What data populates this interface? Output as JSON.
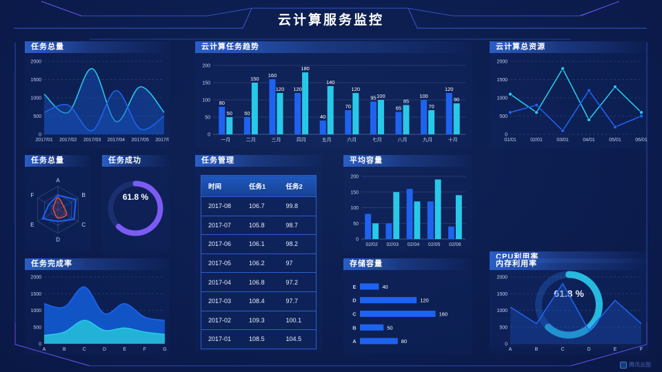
{
  "page": {
    "title": "云计算服务监控",
    "logo": "腾讯云图"
  },
  "colors": {
    "blue": "#1e63f0",
    "cyan": "#28c9e8",
    "purple": "#7c5bf5",
    "red": "#f4502a",
    "donut_track_purple": "#1b2f6e",
    "donut_track_cyan": "#153a80",
    "axis_text": "#c7d2f0",
    "grid": "rgba(160,180,230,0.22)",
    "frame_line": "#3353c4",
    "frame_purple": "#6a4fe0"
  },
  "panels": {
    "task_total_area": {
      "title": "任务总量"
    },
    "task_trend": {
      "title": "云计算任务趋势"
    },
    "total_resources": {
      "title": "云计算总资源"
    },
    "task_total_radar": {
      "title": "任务总量"
    },
    "task_success": {
      "title": "任务成功",
      "value": "61.8 %"
    },
    "task_manage": {
      "title": "任务管理",
      "table": {
        "headers": [
          "时间",
          "任务1",
          "任务2"
        ],
        "rows": [
          [
            "2017-08",
            "106.7",
            "99.8"
          ],
          [
            "2017-07",
            "105.8",
            "98.7"
          ],
          [
            "2017-06",
            "106.1",
            "98.2"
          ],
          [
            "2017-05",
            "106.2",
            "97"
          ],
          [
            "2017-04",
            "106.8",
            "97.2"
          ],
          [
            "2017-03",
            "108.4",
            "97.7"
          ],
          [
            "2017-02",
            "109.3",
            "100.1"
          ],
          [
            "2017-01",
            "108.5",
            "104.5"
          ]
        ]
      }
    },
    "avg_capacity": {
      "title": "平均容量"
    },
    "cpu_usage": {
      "title": "CPU利用率",
      "value": "61.8 %"
    },
    "task_completion": {
      "title": "任务完成率"
    },
    "storage": {
      "title": "存储容量"
    },
    "memory": {
      "title": "内存利用率"
    }
  },
  "chart_data": [
    {
      "id": "task_total_area",
      "type": "area",
      "smooth": true,
      "dashed_grid": true,
      "title": "任务总量",
      "x": [
        "2017/01",
        "2017/02",
        "2017/03",
        "2017/04",
        "2017/05",
        "2017/06"
      ],
      "series": [
        {
          "name": "cyan",
          "values": [
            1100,
            600,
            1800,
            350,
            1300,
            600
          ],
          "fill": "rgba(22,82,190,0.45)"
        },
        {
          "name": "blue",
          "values": [
            600,
            800,
            100,
            1200,
            150,
            500
          ],
          "fill": "rgba(22,82,190,0.40)"
        }
      ],
      "ylim": [
        0,
        2000
      ],
      "yticks": [
        0,
        500,
        1000,
        1500,
        2000
      ]
    },
    {
      "id": "task_trend",
      "type": "bar",
      "labels": true,
      "title": "云计算任务趋势",
      "categories": [
        "一月",
        "二月",
        "三月",
        "四月",
        "五月",
        "六月",
        "七月",
        "八月",
        "九月",
        "十月"
      ],
      "series": [
        {
          "name": "blue",
          "values": [
            80,
            50,
            160,
            120,
            40,
            70,
            95,
            65,
            100,
            120
          ]
        },
        {
          "name": "cyan",
          "values": [
            50,
            150,
            120,
            180,
            140,
            120,
            100,
            85,
            70,
            90
          ]
        }
      ],
      "ylim": [
        0,
        200
      ],
      "yticks": [
        0,
        50,
        100,
        150,
        200
      ]
    },
    {
      "id": "total_resources",
      "type": "line",
      "markers": true,
      "dashed_grid": true,
      "title": "云计算总资源",
      "x": [
        "01/01",
        "02/01",
        "03/01",
        "04/01",
        "05/01",
        "06/01"
      ],
      "series": [
        {
          "name": "cyan",
          "values": [
            1100,
            600,
            1800,
            400,
            1300,
            600
          ]
        },
        {
          "name": "blue",
          "values": [
            600,
            800,
            100,
            1200,
            200,
            500
          ]
        }
      ],
      "ylim": [
        0,
        2000
      ],
      "yticks": [
        0,
        500,
        1000,
        1500,
        2000
      ]
    },
    {
      "id": "task_total_radar",
      "type": "radar",
      "rings": 3,
      "title": "任务总量",
      "axes": [
        "A",
        "B",
        "C",
        "D",
        "E",
        "F"
      ],
      "max": 1,
      "series": [
        {
          "name": "blue",
          "values": [
            0.62,
            0.88,
            0.8,
            0.5,
            0.76,
            0.45
          ],
          "smooth": false
        },
        {
          "name": "red",
          "values": [
            0.52,
            0.28,
            0.42,
            0.35,
            0.18,
            0.22
          ],
          "smooth": true
        }
      ]
    },
    {
      "id": "task_success",
      "type": "donut",
      "value": 61.8,
      "label": "61.8 %",
      "title": "任务成功",
      "color": "purple",
      "track": "donut_track_purple"
    },
    {
      "id": "task_manage_table",
      "type": "table",
      "title": "任务管理",
      "columns": [
        "时间",
        "任务1",
        "任务2"
      ],
      "rows": [
        [
          "2017-08",
          106.7,
          99.8
        ],
        [
          "2017-07",
          105.8,
          98.7
        ],
        [
          "2017-06",
          106.1,
          98.2
        ],
        [
          "2017-05",
          106.2,
          97
        ],
        [
          "2017-04",
          106.8,
          97.2
        ],
        [
          "2017-03",
          108.4,
          97.7
        ],
        [
          "2017-02",
          109.3,
          100.1
        ],
        [
          "2017-01",
          108.5,
          104.5
        ]
      ]
    },
    {
      "id": "avg_capacity",
      "type": "bar",
      "labels": false,
      "title": "平均容量",
      "categories": [
        "02/02",
        "02/03",
        "02/04",
        "02/05",
        "02/06"
      ],
      "series": [
        {
          "name": "blue",
          "values": [
            80,
            50,
            160,
            120,
            40
          ]
        },
        {
          "name": "cyan",
          "values": [
            50,
            150,
            120,
            190,
            140
          ]
        }
      ],
      "ylim": [
        0,
        200
      ],
      "yticks": [
        0,
        50,
        100,
        150,
        200
      ]
    },
    {
      "id": "cpu_usage",
      "type": "donut",
      "value": 61.8,
      "label": "61.8 %",
      "title": "CPU利用率",
      "color": "cyan",
      "track": "donut_track_cyan"
    },
    {
      "id": "task_completion",
      "type": "area",
      "smooth": true,
      "dashed_grid": true,
      "title": "任务完成率",
      "x": [
        "A",
        "B",
        "C",
        "D",
        "E",
        "F",
        "G"
      ],
      "series": [
        {
          "name": "blue",
          "values": [
            1200,
            1100,
            1700,
            900,
            1200,
            800,
            700
          ],
          "fill": "#1257cc",
          "fillOpacity": 0.95
        },
        {
          "name": "cyan",
          "values": [
            250,
            350,
            700,
            400,
            470,
            350,
            280
          ],
          "fill": "#22b2d8",
          "fillOpacity": 1
        }
      ],
      "ylim": [
        0,
        2000
      ],
      "yticks": [
        0,
        500,
        1000,
        1500,
        2000
      ]
    },
    {
      "id": "storage",
      "type": "hbar",
      "title": "存储容量",
      "categories": [
        "E",
        "D",
        "C",
        "B",
        "A"
      ],
      "values": [
        40,
        120,
        160,
        50,
        80
      ],
      "xlim": [
        0,
        200
      ]
    },
    {
      "id": "memory",
      "type": "line",
      "markers": false,
      "dashed_grid": true,
      "title": "内存利用率",
      "x": [
        "A",
        "B",
        "C",
        "D",
        "E",
        "F"
      ],
      "series": [
        {
          "name": "blue",
          "values": [
            1100,
            600,
            1800,
            400,
            1300,
            600
          ],
          "fill": "rgba(25,80,185,0.38)"
        }
      ],
      "ylim": [
        0,
        2000
      ],
      "yticks": [
        0,
        500,
        1000,
        1500,
        2000
      ]
    }
  ]
}
